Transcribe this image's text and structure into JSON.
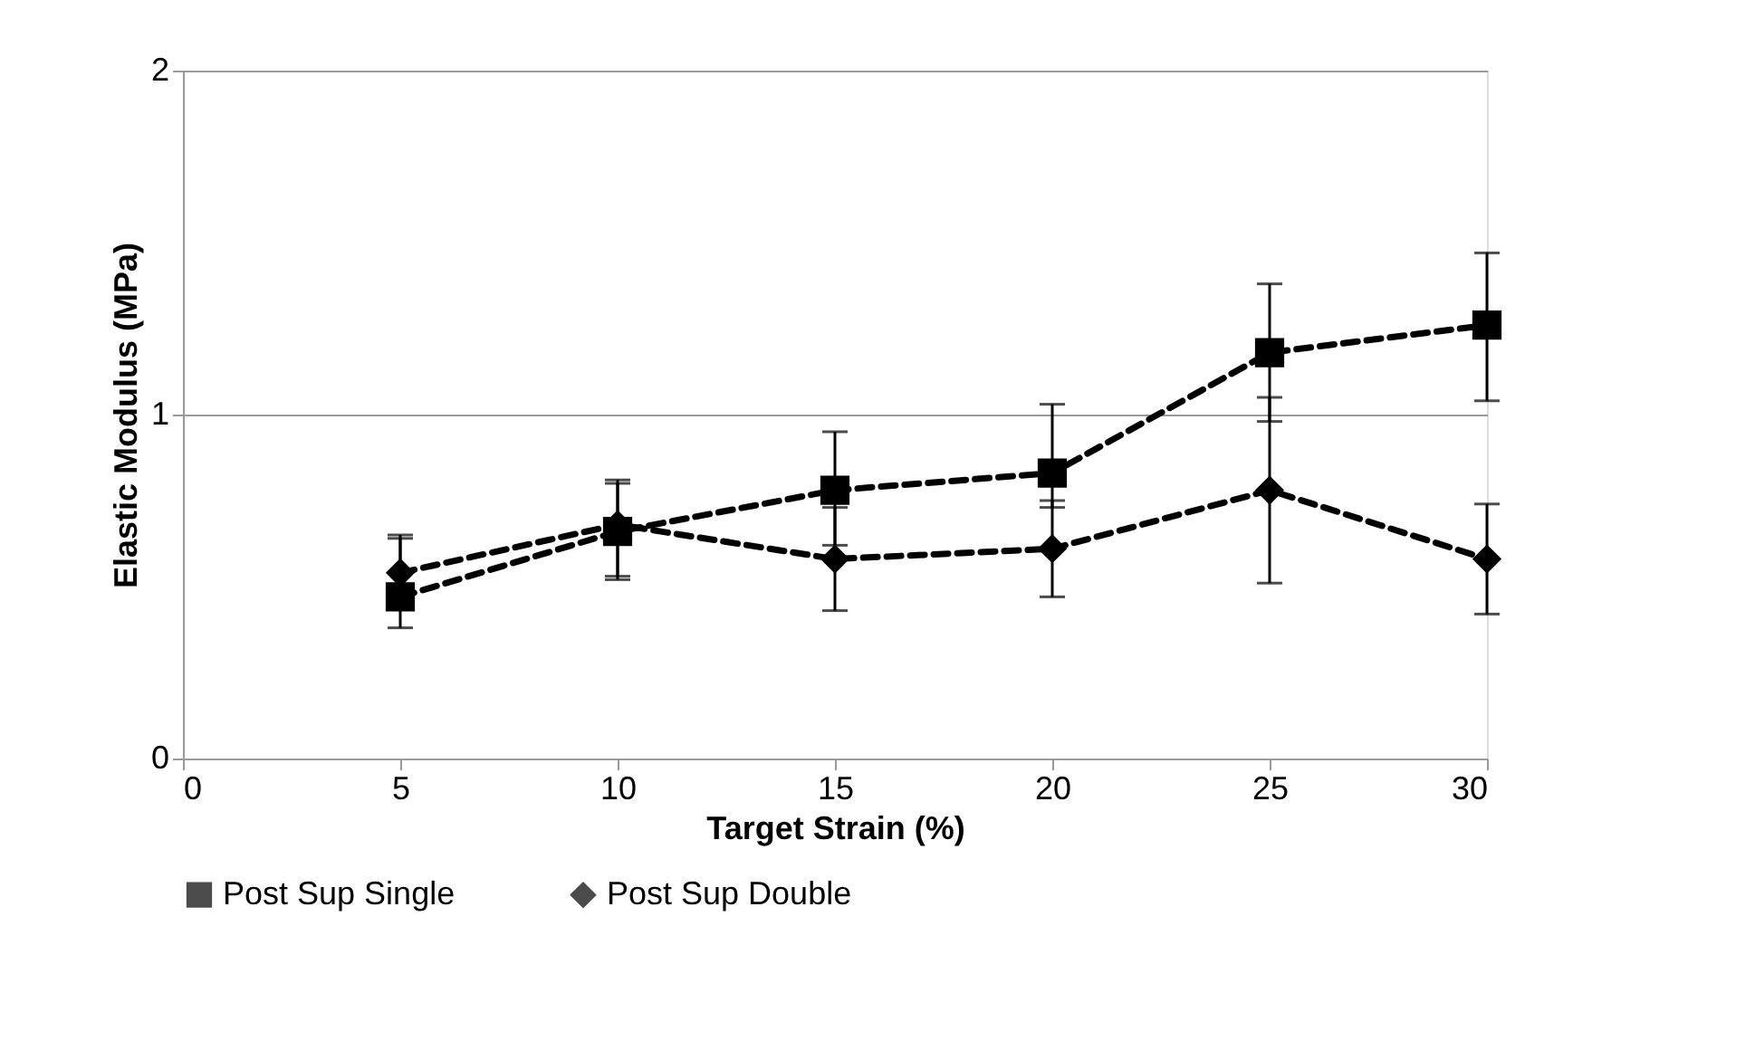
{
  "chart_data": {
    "type": "line",
    "xlabel": "Target Strain (%)",
    "ylabel": "Elastic Modulus (MPa)",
    "x": [
      5,
      10,
      15,
      20,
      25,
      30
    ],
    "series": [
      {
        "name": "Post Sup Single",
        "color": "#000000",
        "marker": "square",
        "values": [
          0.47,
          0.66,
          0.78,
          0.83,
          1.18,
          1.26
        ],
        "errors": [
          [
            0.38,
            0.65
          ],
          [
            0.53,
            0.81
          ],
          [
            0.62,
            0.95
          ],
          [
            0.73,
            1.03
          ],
          [
            0.98,
            1.38
          ],
          [
            1.04,
            1.47
          ]
        ]
      },
      {
        "name": "Post Sup Double",
        "color": "#000000",
        "marker": "diamond",
        "values": [
          0.54,
          0.68,
          0.58,
          0.61,
          0.78,
          0.58
        ],
        "errors": [
          [
            0.54,
            0.64
          ],
          [
            0.52,
            0.8
          ],
          [
            0.43,
            0.73
          ],
          [
            0.47,
            0.75
          ],
          [
            0.51,
            1.05
          ],
          [
            0.42,
            0.74
          ]
        ]
      }
    ],
    "xlim": [
      0,
      30
    ],
    "xticks": [
      0,
      5,
      10,
      15,
      20,
      25,
      30
    ],
    "ylim": [
      0,
      2
    ],
    "yticks": [
      0,
      1,
      2
    ],
    "grid": "y",
    "legend": "bottom",
    "line_style": "dashed"
  }
}
